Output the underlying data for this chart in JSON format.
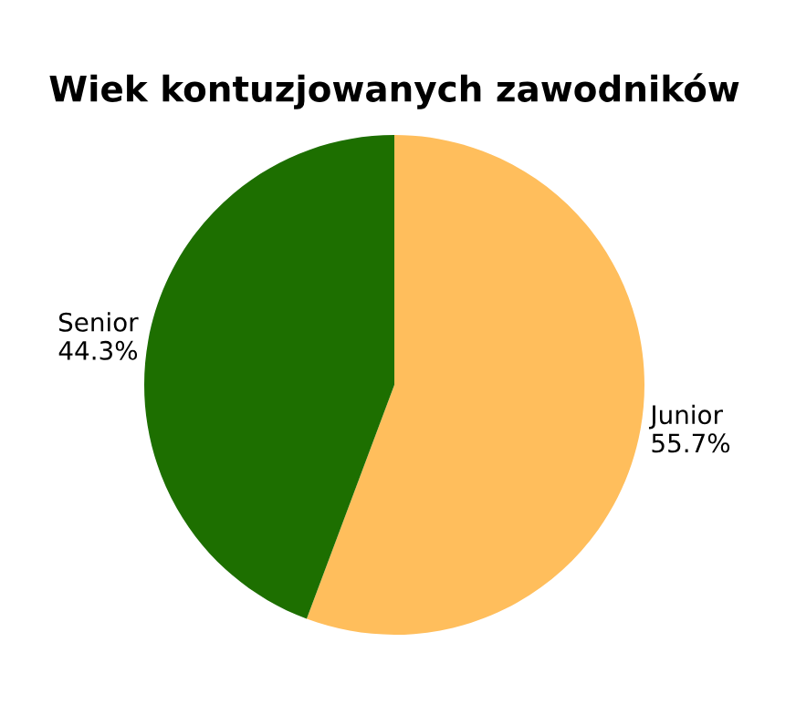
{
  "chart_data": {
    "type": "pie",
    "title": "Wiek kontuzjowanych zawodników",
    "categories": [
      "Junior",
      "Senior"
    ],
    "values": [
      55.7,
      44.3
    ],
    "value_labels": [
      "55.7%",
      "44.3%"
    ],
    "colors": [
      "#ffbe5c",
      "#1d6f00"
    ]
  }
}
